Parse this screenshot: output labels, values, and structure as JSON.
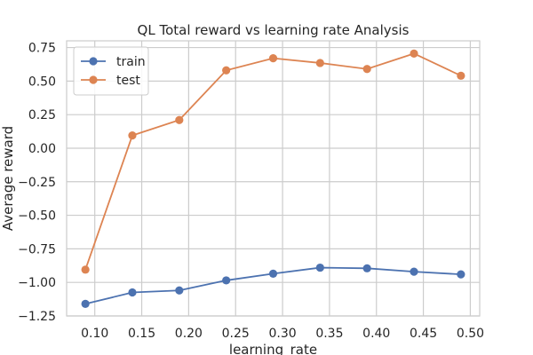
{
  "chart_data": {
    "type": "line",
    "title": "QL Total reward vs learning rate Analysis",
    "xlabel": "learning_rate",
    "ylabel": "Average reward",
    "x": [
      0.09,
      0.14,
      0.19,
      0.24,
      0.29,
      0.34,
      0.39,
      0.44,
      0.49
    ],
    "series": [
      {
        "name": "train",
        "color": "#4c72b0",
        "values": [
          -1.16,
          -1.075,
          -1.06,
          -0.985,
          -0.935,
          -0.89,
          -0.895,
          -0.92,
          -0.94
        ]
      },
      {
        "name": "test",
        "color": "#dd8452",
        "values": [
          -0.905,
          0.095,
          0.21,
          0.58,
          0.67,
          0.635,
          0.59,
          0.705,
          0.54
        ]
      }
    ],
    "xticks": [
      0.1,
      0.15,
      0.2,
      0.25,
      0.3,
      0.35,
      0.4,
      0.45,
      0.5
    ],
    "xtick_labels": [
      "0.10",
      "0.15",
      "0.20",
      "0.25",
      "0.30",
      "0.35",
      "0.40",
      "0.45",
      "0.50"
    ],
    "yticks": [
      -1.25,
      -1.0,
      -0.75,
      -0.5,
      -0.25,
      0.0,
      0.25,
      0.5,
      0.75
    ],
    "ytick_labels": [
      "−1.25",
      "−1.00",
      "−0.75",
      "−0.50",
      "−0.25",
      "0.00",
      "0.25",
      "0.50",
      "0.75"
    ],
    "xlim": [
      0.07,
      0.51
    ],
    "ylim": [
      -1.25,
      0.8
    ],
    "grid": true,
    "legend_position": "upper-left",
    "marker": "circle"
  }
}
